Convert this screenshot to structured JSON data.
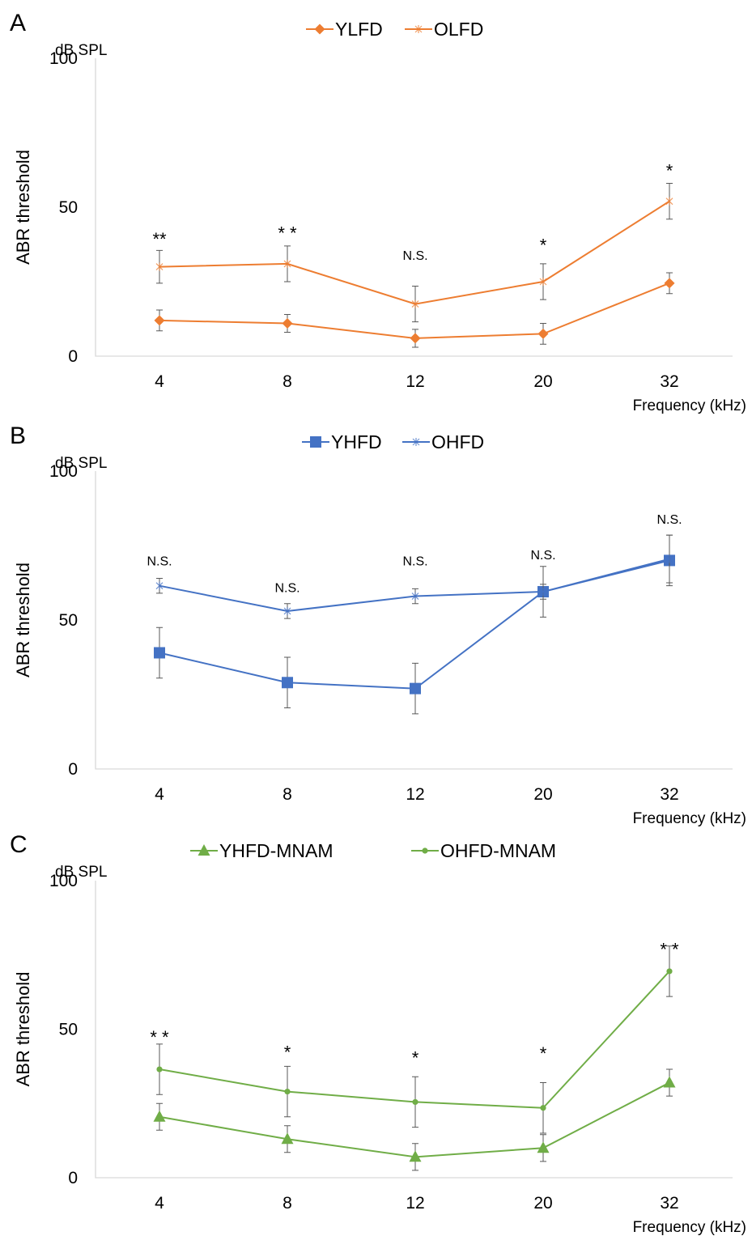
{
  "chart_data": [
    {
      "type": "line",
      "panel_label": "A",
      "ylabel": "ABR threshold",
      "yunit": "dB SPL",
      "xlabel": "Frequency (kHz)",
      "categories": [
        "4",
        "8",
        "12",
        "20",
        "32"
      ],
      "ylim": [
        0,
        100
      ],
      "yticks": [
        "0",
        "50",
        "100"
      ],
      "grid": false,
      "legend_position": "top-center",
      "series": [
        {
          "name": "YLFD",
          "color": "#ED7D31",
          "marker": "diamond",
          "values": [
            12,
            11,
            6,
            7.5,
            24.5
          ],
          "errors": [
            3.5,
            3,
            3,
            3.5,
            3.5
          ]
        },
        {
          "name": "OLFD",
          "color": "#ED7D31",
          "marker": "star",
          "values": [
            30,
            31,
            17.5,
            25,
            52
          ],
          "errors": [
            5.5,
            6,
            6,
            6,
            6
          ]
        }
      ],
      "annotations": [
        {
          "category_index": 0,
          "text": "**",
          "y": 40.5
        },
        {
          "category_index": 1,
          "text": "* *",
          "y": 42.5
        },
        {
          "category_index": 2,
          "text": "N.S.",
          "y": 34
        },
        {
          "category_index": 3,
          "text": "*",
          "y": 38.5
        },
        {
          "category_index": 4,
          "text": "*",
          "y": 63.5
        }
      ]
    },
    {
      "type": "line",
      "panel_label": "B",
      "ylabel": "ABR threshold",
      "yunit": "dB SPL",
      "xlabel": "Frequency (kHz)",
      "categories": [
        "4",
        "8",
        "12",
        "20",
        "32"
      ],
      "ylim": [
        0,
        100
      ],
      "yticks": [
        "0",
        "50",
        "100"
      ],
      "grid": false,
      "legend_position": "top-center",
      "series": [
        {
          "name": "YHFD",
          "color": "#4472C4",
          "marker": "square",
          "values": [
            39,
            29,
            27,
            59.5,
            70
          ],
          "errors": [
            8.5,
            8.5,
            8.5,
            8.5,
            8.5
          ]
        },
        {
          "name": "OHFD",
          "color": "#4472C4",
          "marker": "star",
          "values": [
            61.5,
            53,
            58,
            59.5,
            70.5
          ],
          "errors": [
            2.5,
            2.5,
            2.5,
            2.5,
            8
          ]
        }
      ],
      "annotations": [
        {
          "category_index": 0,
          "text": "N.S.",
          "y": 70
        },
        {
          "category_index": 1,
          "text": "N.S.",
          "y": 61
        },
        {
          "category_index": 2,
          "text": "N.S.",
          "y": 70
        },
        {
          "category_index": 3,
          "text": "N.S.",
          "y": 72
        },
        {
          "category_index": 4,
          "text": "N.S.",
          "y": 84
        }
      ]
    },
    {
      "type": "line",
      "panel_label": "C",
      "ylabel": "ABR threshold",
      "yunit": "dB SPL",
      "xlabel": "Frequency (kHz)",
      "categories": [
        "4",
        "8",
        "12",
        "20",
        "32"
      ],
      "ylim": [
        0,
        100
      ],
      "yticks": [
        "0",
        "50",
        "100"
      ],
      "grid": false,
      "legend_position": "top-center",
      "series": [
        {
          "name": "YHFD-MNAM",
          "color": "#70AD47",
          "marker": "triangle",
          "values": [
            20.5,
            13,
            7,
            10,
            32
          ],
          "errors": [
            4.5,
            4.5,
            4.5,
            4.5,
            4.5
          ]
        },
        {
          "name": "OHFD-MNAM",
          "color": "#70AD47",
          "marker": "circle",
          "values": [
            36.5,
            29,
            25.5,
            23.5,
            69.5
          ],
          "errors": [
            8.5,
            8.5,
            8.5,
            8.5,
            8.5
          ]
        }
      ],
      "annotations": [
        {
          "category_index": 0,
          "text": "* *",
          "y": 48.5
        },
        {
          "category_index": 1,
          "text": "*",
          "y": 43.5
        },
        {
          "category_index": 2,
          "text": "*",
          "y": 41.5
        },
        {
          "category_index": 3,
          "text": "*",
          "y": 43
        },
        {
          "category_index": 4,
          "text": "* *",
          "y": 78
        }
      ]
    }
  ]
}
